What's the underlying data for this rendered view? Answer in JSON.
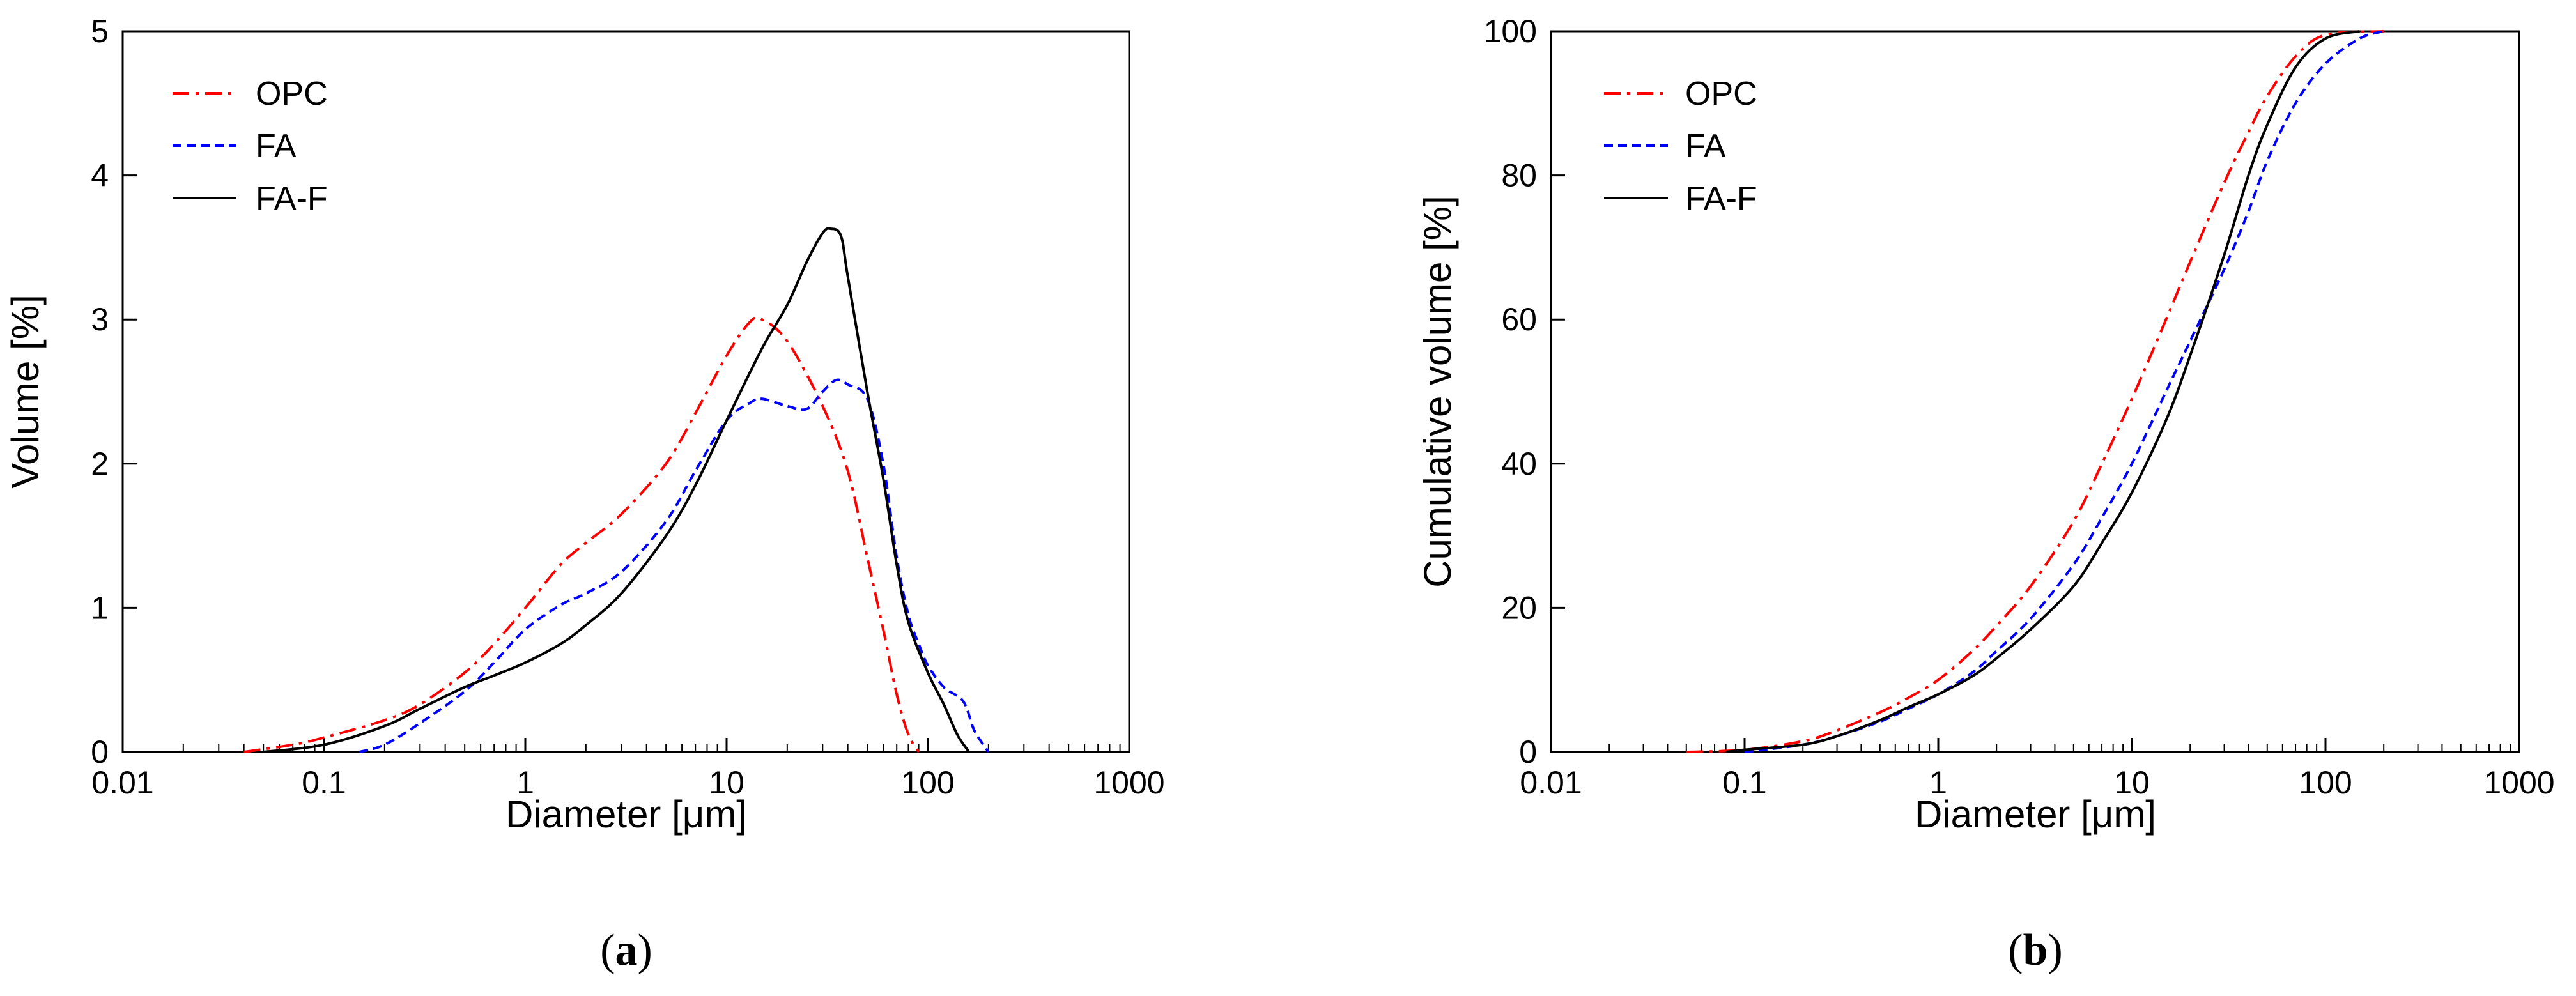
{
  "colors": {
    "OPC": "#ff0000",
    "FA": "#0000ff",
    "FA-F": "#000000"
  },
  "chart_data": [
    {
      "panel": "a",
      "panel_label": {
        "open": "(",
        "letter": "a",
        "close": ")"
      },
      "type": "line",
      "xscale": "log",
      "xlabel": "Diameter [μm]",
      "ylabel": "Volume [%]",
      "xlim": [
        0.01,
        1000
      ],
      "ylim": [
        0,
        5
      ],
      "xticks": [
        0.01,
        0.1,
        1,
        10,
        100,
        1000
      ],
      "xtick_labels": [
        "0.01",
        "0.1",
        "1",
        "10",
        "100",
        "1000"
      ],
      "yticks": [
        0,
        1,
        2,
        3,
        4,
        5
      ],
      "ytick_labels": [
        "0",
        "1",
        "2",
        "3",
        "4",
        "5"
      ],
      "legend": {
        "position": "top-left",
        "entries": [
          "OPC",
          "FA",
          "FA-F"
        ]
      },
      "series": [
        {
          "name": "OPC",
          "style": "dash-dot",
          "color": "#ff0000",
          "x": [
            0.04,
            0.07,
            0.1,
            0.2,
            0.3,
            0.5,
            0.7,
            1,
            1.5,
            2,
            3,
            5,
            7,
            10,
            13,
            15,
            20,
            30,
            40,
            50,
            60,
            70,
            80,
            90
          ],
          "y": [
            0,
            0.05,
            0.1,
            0.22,
            0.33,
            0.55,
            0.75,
            1.0,
            1.3,
            1.45,
            1.65,
            2.0,
            2.35,
            2.75,
            2.98,
            3.0,
            2.85,
            2.4,
            1.95,
            1.35,
            0.85,
            0.4,
            0.12,
            0
          ]
        },
        {
          "name": "FA",
          "style": "dashed",
          "color": "#0000ff",
          "x": [
            0.15,
            0.2,
            0.3,
            0.5,
            0.7,
            1,
            1.5,
            2,
            3,
            5,
            7,
            10,
            13,
            15,
            20,
            25,
            30,
            35,
            40,
            50,
            60,
            70,
            80,
            90,
            100,
            120,
            150,
            170,
            200
          ],
          "y": [
            0,
            0.05,
            0.2,
            0.42,
            0.62,
            0.85,
            1.02,
            1.1,
            1.25,
            1.6,
            1.95,
            2.3,
            2.42,
            2.45,
            2.4,
            2.38,
            2.5,
            2.58,
            2.55,
            2.45,
            2.0,
            1.35,
            0.95,
            0.75,
            0.6,
            0.45,
            0.35,
            0.15,
            0
          ]
        },
        {
          "name": "FA-F",
          "style": "solid",
          "color": "#000000",
          "x": [
            0.05,
            0.1,
            0.2,
            0.3,
            0.5,
            0.7,
            1,
            1.5,
            2,
            3,
            5,
            7,
            10,
            15,
            20,
            25,
            30,
            33,
            37,
            40,
            50,
            60,
            70,
            80,
            100,
            120,
            140,
            160
          ],
          "y": [
            0,
            0.05,
            0.18,
            0.3,
            0.45,
            0.53,
            0.62,
            0.75,
            0.88,
            1.1,
            1.5,
            1.85,
            2.3,
            2.8,
            3.1,
            3.4,
            3.6,
            3.63,
            3.58,
            3.3,
            2.5,
            1.9,
            1.3,
            0.9,
            0.55,
            0.33,
            0.12,
            0
          ]
        }
      ]
    },
    {
      "panel": "b",
      "panel_label": {
        "open": "(",
        "letter": "b",
        "close": ")"
      },
      "type": "line",
      "xscale": "log",
      "xlabel": "Diameter [μm]",
      "ylabel": "Cumulative volume [%]",
      "xlim": [
        0.01,
        1000
      ],
      "ylim": [
        0,
        100
      ],
      "xticks": [
        0.01,
        0.1,
        1,
        10,
        100,
        1000
      ],
      "xtick_labels": [
        "0.01",
        "0.1",
        "1",
        "10",
        "100",
        "1000"
      ],
      "yticks": [
        0,
        20,
        40,
        60,
        80,
        100
      ],
      "ytick_labels": [
        "0",
        "20",
        "40",
        "60",
        "80",
        "100"
      ],
      "legend": {
        "position": "top-left",
        "entries": [
          "OPC",
          "FA",
          "FA-F"
        ]
      },
      "series": [
        {
          "name": "OPC",
          "style": "dash-dot",
          "color": "#ff0000",
          "x": [
            0.05,
            0.1,
            0.2,
            0.3,
            0.5,
            0.7,
            1,
            1.5,
            2,
            3,
            5,
            7,
            10,
            15,
            20,
            30,
            40,
            50,
            70,
            100,
            200
          ],
          "y": [
            0,
            0.3,
            1.5,
            3,
            5.5,
            7.5,
            10,
            14,
            17.5,
            23,
            32,
            40,
            49,
            60,
            68,
            79,
            86,
            91,
            96.5,
            99.5,
            100
          ]
        },
        {
          "name": "FA",
          "style": "dashed",
          "color": "#0000ff",
          "x": [
            0.1,
            0.2,
            0.3,
            0.5,
            0.7,
            1,
            1.5,
            2,
            3,
            5,
            7,
            10,
            15,
            20,
            30,
            40,
            50,
            70,
            100,
            150,
            200
          ],
          "y": [
            0,
            1,
            2.2,
            4.2,
            6,
            8,
            11,
            14,
            18.5,
            26,
            32.5,
            40,
            50,
            57,
            67,
            75,
            82,
            90,
            95.5,
            99,
            100
          ]
        },
        {
          "name": "FA-F",
          "style": "solid",
          "color": "#000000",
          "x": [
            0.08,
            0.1,
            0.2,
            0.3,
            0.5,
            0.7,
            1,
            1.5,
            2,
            3,
            5,
            7,
            10,
            15,
            20,
            30,
            40,
            50,
            70,
            100,
            150
          ],
          "y": [
            0,
            0.3,
            1,
            2.2,
            4.4,
            6.2,
            8,
            10.5,
            13,
            17,
            23,
            29,
            36,
            46,
            55,
            69,
            80,
            87,
            95,
            99,
            100
          ]
        }
      ]
    }
  ]
}
